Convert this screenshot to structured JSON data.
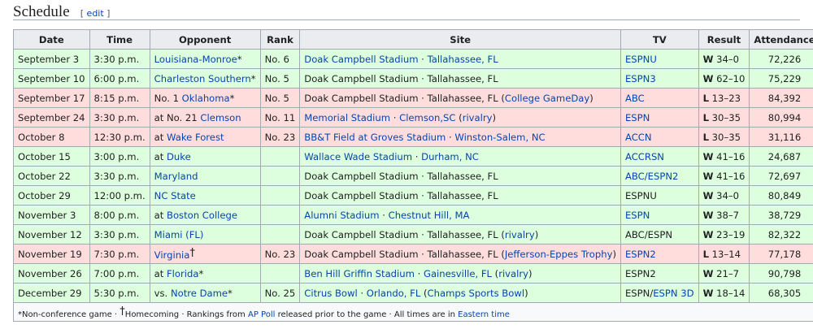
{
  "header": {
    "title": "Schedule",
    "edit_open": "[",
    "edit": "edit",
    "edit_close": "]"
  },
  "table": {
    "columns": [
      "Date",
      "Time",
      "Opponent",
      "Rank",
      "Site",
      "TV",
      "Result",
      "Attendance"
    ],
    "rows": [
      {
        "color": "#dfd",
        "date": "September 3",
        "time": "3:30 p.m.",
        "opponent": [
          {
            "link": "Louisiana-Monroe"
          },
          "*"
        ],
        "rank": "No. 6",
        "site": [
          {
            "link": "Doak Campbell Stadium"
          },
          " · ",
          {
            "link": "Tallahassee, FL"
          }
        ],
        "tv": [
          {
            "link": "ESPNU"
          }
        ],
        "outcome": "W",
        "score": "34–0",
        "attendance": "72,226"
      },
      {
        "color": "#dfd",
        "date": "September 10",
        "time": "6:00 p.m.",
        "opponent": [
          {
            "link": "Charleston Southern"
          },
          "*"
        ],
        "rank": "No. 5",
        "site": [
          "Doak Campbell Stadium · Tallahassee, FL"
        ],
        "tv": [
          {
            "link": "ESPN3"
          }
        ],
        "outcome": "W",
        "score": "62–10",
        "attendance": "75,229"
      },
      {
        "color": "#fdd",
        "date": "September 17",
        "time": "8:15 p.m.",
        "opponent": [
          "No. 1 ",
          {
            "link": "Oklahoma"
          },
          "*"
        ],
        "rank": "No. 5",
        "site": [
          "Doak Campbell Stadium · Tallahassee, FL (",
          {
            "link": "College GameDay"
          },
          ")"
        ],
        "tv": [
          {
            "link": "ABC"
          }
        ],
        "outcome": "L",
        "score": "13–23",
        "attendance": "84,392"
      },
      {
        "color": "#fdd",
        "date": "September 24",
        "time": "3:30 p.m.",
        "opponent": [
          "at No. 21 ",
          {
            "link": "Clemson"
          }
        ],
        "rank": "No. 11",
        "site": [
          {
            "link": "Memorial Stadium"
          },
          " · ",
          {
            "link": "Clemson,SC"
          },
          " (",
          {
            "link": "rivalry"
          },
          ")"
        ],
        "tv": [
          {
            "link": "ESPN"
          }
        ],
        "outcome": "L",
        "score": "30–35",
        "attendance": "80,994"
      },
      {
        "color": "#fdd",
        "date": "October 8",
        "time": "12:30 p.m.",
        "opponent": [
          "at ",
          {
            "link": "Wake Forest"
          }
        ],
        "rank": "No. 23",
        "site": [
          {
            "link": "BB&T Field at Groves Stadium"
          },
          " · ",
          {
            "link": "Winston-Salem, NC"
          }
        ],
        "tv": [
          {
            "link": "ACCN"
          }
        ],
        "outcome": "L",
        "score": "30–35",
        "attendance": "31,116"
      },
      {
        "color": "#dfd",
        "date": "October 15",
        "time": "3:00 p.m.",
        "opponent": [
          "at ",
          {
            "link": "Duke"
          }
        ],
        "rank": null,
        "site": [
          {
            "link": "Wallace Wade Stadium"
          },
          " · ",
          {
            "link": "Durham, NC"
          }
        ],
        "tv": [
          {
            "link": "ACCRSN"
          }
        ],
        "outcome": "W",
        "score": "41–16",
        "attendance": "24,687"
      },
      {
        "color": "#dfd",
        "date": "October 22",
        "time": "3:30 p.m.",
        "opponent": [
          {
            "link": "Maryland"
          }
        ],
        "rank": null,
        "site": [
          "Doak Campbell Stadium · Tallahassee, FL"
        ],
        "tv": [
          {
            "link": "ABC/ESPN2"
          }
        ],
        "outcome": "W",
        "score": "41–16",
        "attendance": "72,697"
      },
      {
        "color": "#dfd",
        "date": "October 29",
        "time": "12:00 p.m.",
        "opponent": [
          {
            "link": "NC State"
          }
        ],
        "rank": null,
        "site": [
          "Doak Campbell Stadium · Tallahassee, FL"
        ],
        "tv": [
          "ESPNU"
        ],
        "outcome": "W",
        "score": "34–0",
        "attendance": "80,849"
      },
      {
        "color": "#dfd",
        "date": "November 3",
        "time": "8:00 p.m.",
        "opponent": [
          "at ",
          {
            "link": "Boston College"
          }
        ],
        "rank": null,
        "site": [
          {
            "link": "Alumni Stadium"
          },
          " · ",
          {
            "link": "Chestnut Hill, MA"
          }
        ],
        "tv": [
          {
            "link": "ESPN"
          }
        ],
        "outcome": "W",
        "score": "38–7",
        "attendance": "38,729"
      },
      {
        "color": "#dfd",
        "date": "November 12",
        "time": "3:30 p.m.",
        "opponent": [
          {
            "link": "Miami (FL)"
          }
        ],
        "rank": null,
        "site": [
          "Doak Campbell Stadium · Tallahassee, FL (",
          {
            "link": "rivalry"
          },
          ")"
        ],
        "tv": [
          "ABC/ESPN"
        ],
        "outcome": "W",
        "score": "23–19",
        "attendance": "82,322"
      },
      {
        "color": "#fdd",
        "date": "November 19",
        "time": "7:30 p.m.",
        "opponent": [
          {
            "link": "Virginia"
          },
          {
            "sup": "†"
          }
        ],
        "rank": "No. 23",
        "site": [
          "Doak Campbell Stadium · Tallahassee, FL (",
          {
            "link": "Jefferson-Eppes Trophy"
          },
          ")"
        ],
        "tv": [
          {
            "link": "ESPN2"
          }
        ],
        "outcome": "L",
        "score": "13–14",
        "attendance": "77,178"
      },
      {
        "color": "#dfd",
        "date": "November 26",
        "time": "7:00 p.m.",
        "opponent": [
          "at ",
          {
            "link": "Florida"
          },
          "*"
        ],
        "rank": null,
        "site": [
          {
            "link": "Ben Hill Griffin Stadium"
          },
          " · ",
          {
            "link": "Gainesville, FL"
          },
          " (",
          {
            "link": "rivalry"
          },
          ")"
        ],
        "tv": [
          "ESPN2"
        ],
        "outcome": "W",
        "score": "21–7",
        "attendance": "90,798"
      },
      {
        "color": "#dfd",
        "date": "December 29",
        "time": "5:30 p.m.",
        "opponent": [
          "vs. ",
          {
            "link": "Notre Dame"
          },
          "*"
        ],
        "rank": "No. 25",
        "site": [
          {
            "link": "Citrus Bowl"
          },
          " · ",
          {
            "link": "Orlando, FL"
          },
          " (",
          {
            "link": "Champs Sports Bowl"
          },
          ")"
        ],
        "tv": [
          "ESPN/",
          {
            "link": "ESPN 3D"
          }
        ],
        "outcome": "W",
        "score": "18–14",
        "attendance": "68,305"
      }
    ],
    "footnote": [
      "*Non-conference game · ",
      {
        "sup": "†"
      },
      "Homecoming · Rankings from ",
      {
        "link": "AP Poll"
      },
      " released prior to the game · All times are in ",
      {
        "link": "Eastern time"
      }
    ]
  }
}
